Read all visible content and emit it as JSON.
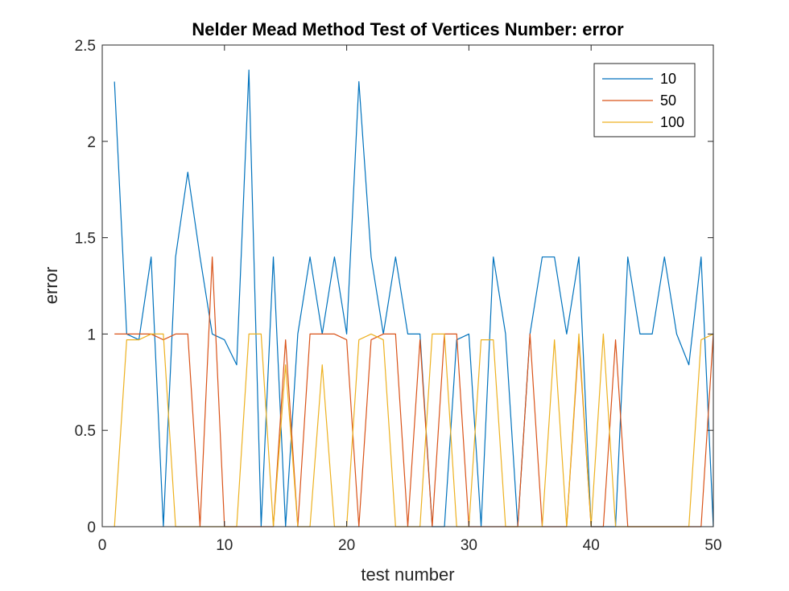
{
  "chart_data": {
    "type": "line",
    "title": "Nelder Mead Method Test of Vertices Number: error",
    "xlabel": "test number",
    "ylabel": "error",
    "xlim": [
      0,
      50
    ],
    "ylim": [
      0,
      2.5
    ],
    "xticks": [
      0,
      10,
      20,
      30,
      40,
      50
    ],
    "yticks": [
      0,
      0.5,
      1,
      1.5,
      2,
      2.5
    ],
    "xtick_labels": [
      "0",
      "10",
      "20",
      "30",
      "40",
      "50"
    ],
    "ytick_labels": [
      "0",
      "0.5",
      "1",
      "1.5",
      "2",
      "2.5"
    ],
    "grid": false,
    "legend_position": "top-right",
    "x": [
      1,
      2,
      3,
      4,
      5,
      6,
      7,
      8,
      9,
      10,
      11,
      12,
      13,
      14,
      15,
      16,
      17,
      18,
      19,
      20,
      21,
      22,
      23,
      24,
      25,
      26,
      27,
      28,
      29,
      30,
      31,
      32,
      33,
      34,
      35,
      36,
      37,
      38,
      39,
      40,
      41,
      42,
      43,
      44,
      45,
      46,
      47,
      48,
      49,
      50
    ],
    "series": [
      {
        "name": "10",
        "color": "#0072BD",
        "values": [
          2.31,
          1.0,
          0.97,
          1.4,
          0,
          1.4,
          1.84,
          1.4,
          1.0,
          0.97,
          0.84,
          2.37,
          0,
          1.4,
          0,
          1.0,
          1.4,
          1.0,
          1.4,
          1.0,
          2.31,
          1.4,
          1.0,
          1.4,
          1.0,
          1.0,
          0,
          0,
          0.97,
          1.0,
          0,
          1.4,
          1.0,
          0,
          1.0,
          1.4,
          1.4,
          1.0,
          1.4,
          0,
          0,
          0,
          1.4,
          1.0,
          1.0,
          1.4,
          1.0,
          0.84,
          1.4,
          0
        ]
      },
      {
        "name": "50",
        "color": "#D95319",
        "values": [
          1.0,
          1.0,
          1.0,
          1.0,
          0.97,
          1.0,
          1.0,
          0,
          1.4,
          0,
          0,
          0,
          0,
          0,
          0.97,
          0,
          1.0,
          1.0,
          1.0,
          0.97,
          0,
          0.97,
          1.0,
          1.0,
          0,
          0.97,
          0,
          1.0,
          1.0,
          0,
          0,
          0,
          0,
          0,
          1.0,
          0,
          0,
          0,
          0.97,
          0,
          0,
          0.97,
          0,
          0,
          0,
          0,
          0,
          0,
          0,
          1.0
        ]
      },
      {
        "name": "100",
        "color": "#EDB120",
        "values": [
          0,
          0.97,
          0.97,
          1.0,
          1.0,
          0,
          0,
          0,
          0,
          0,
          0,
          1.0,
          1.0,
          0,
          0.84,
          0,
          0,
          0.84,
          0,
          0,
          0.97,
          1.0,
          0.97,
          0,
          0,
          0,
          1.0,
          1.0,
          0,
          0,
          0.97,
          0.97,
          0,
          0,
          0,
          0,
          0.97,
          0,
          1.0,
          0,
          1.0,
          0,
          0,
          0,
          0,
          0,
          0,
          0,
          0.97,
          1.0
        ]
      }
    ]
  }
}
